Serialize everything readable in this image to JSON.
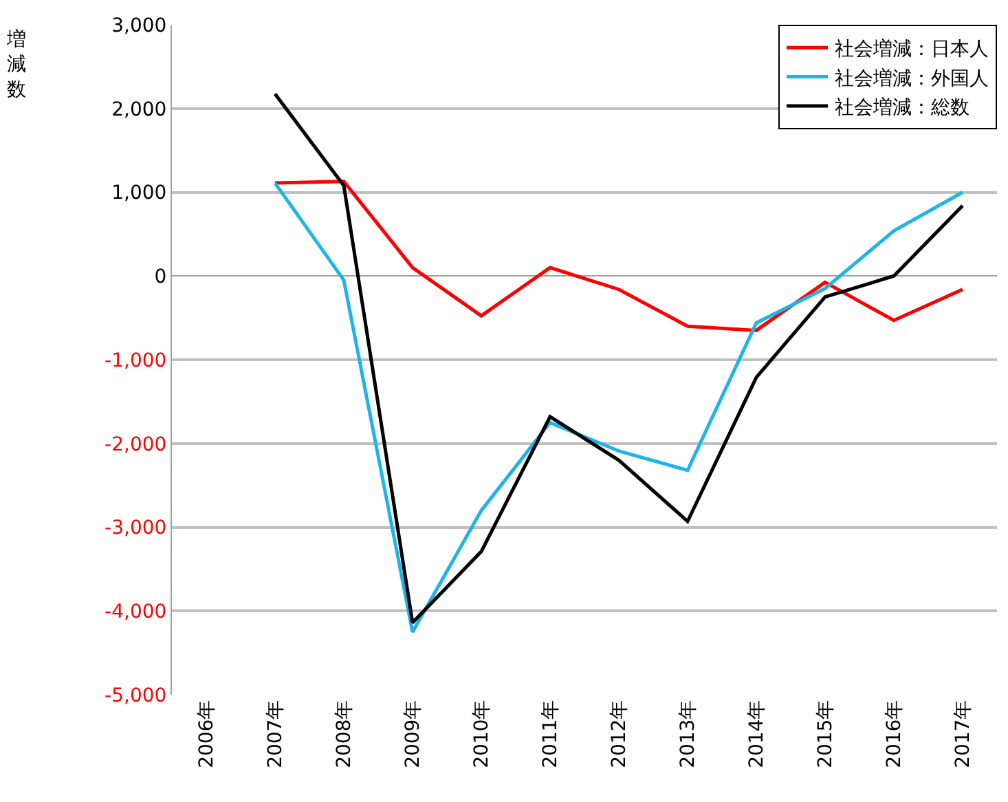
{
  "chart_data": {
    "type": "line",
    "ylabel": "増減数",
    "categories": [
      "2006年",
      "2007年",
      "2008年",
      "2009年",
      "2010年",
      "2011年",
      "2012年",
      "2013年",
      "2014年",
      "2015年",
      "2016年",
      "2017年"
    ],
    "series": [
      {
        "name": "社会増減：日本人",
        "color": "#ff0000",
        "values": [
          null,
          1110,
          1130,
          100,
          -475,
          100,
          -160,
          -600,
          -650,
          -75,
          -530,
          -160
        ]
      },
      {
        "name": "社会増減：外国人",
        "color": "#1eb4e8",
        "values": [
          null,
          1110,
          -50,
          -4250,
          -2800,
          -1750,
          -2090,
          -2320,
          -560,
          -150,
          540,
          1000
        ]
      },
      {
        "name": "社会増減：総数",
        "color": "#000000",
        "values": [
          null,
          2175,
          1080,
          -4140,
          -3290,
          -1680,
          -2200,
          -2930,
          -1210,
          -250,
          0,
          840
        ]
      }
    ],
    "ylim": [
      -5000,
      3000
    ],
    "yticks": [
      {
        "value": 3000,
        "label": "3,000"
      },
      {
        "value": 2000,
        "label": "2,000"
      },
      {
        "value": 1000,
        "label": "1,000"
      },
      {
        "value": 0,
        "label": "0"
      },
      {
        "value": -1000,
        "label": "-1,000"
      },
      {
        "value": -2000,
        "label": "-2,000"
      },
      {
        "value": -3000,
        "label": "-3,000"
      },
      {
        "value": -4000,
        "label": "-4,000"
      },
      {
        "value": -5000,
        "label": "-5,000"
      }
    ],
    "grid": "y",
    "legend": "top right",
    "marker": "none",
    "line_style": "solid"
  }
}
